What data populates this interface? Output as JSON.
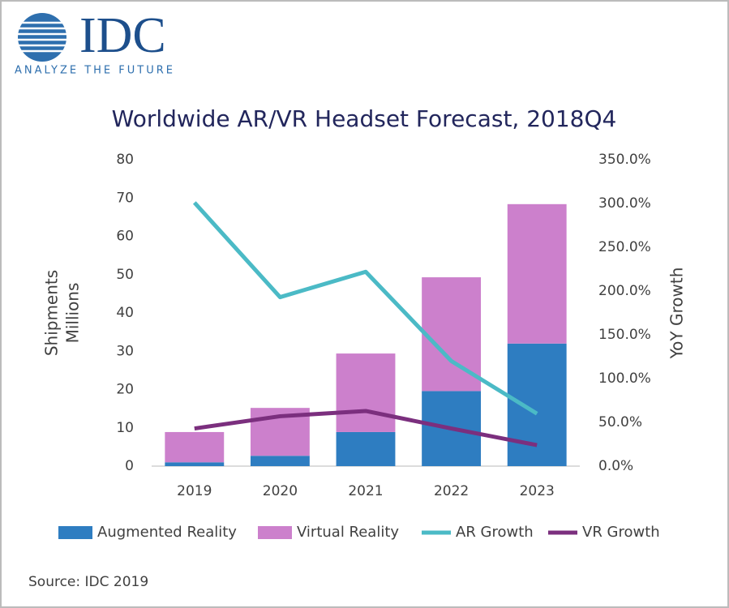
{
  "logo": {
    "name": "IDC",
    "tagline": "ANALYZE THE FUTURE"
  },
  "source": "Source: IDC 2019",
  "chart_data": {
    "type": "bar",
    "title": "Worldwide AR/VR Headset Forecast, 2018Q4",
    "ylabel": [
      "Shipments",
      "Millions"
    ],
    "y2label": "YoY Growth",
    "categories": [
      "2019",
      "2020",
      "2021",
      "2022",
      "2023"
    ],
    "stacked": true,
    "legend": "bottom",
    "series": [
      {
        "name": "Augmented Reality",
        "type": "bar",
        "color": "#2e7dc1",
        "values": [
          1.0,
          2.7,
          8.9,
          19.6,
          32.0
        ]
      },
      {
        "name": "Virtual Reality",
        "type": "bar",
        "color": "#cc80cc",
        "values": [
          7.9,
          12.5,
          20.5,
          29.7,
          36.4
        ]
      },
      {
        "name": "AR Growth",
        "type": "line",
        "axis": "y2",
        "color": "#4bbac6",
        "values": [
          301,
          193,
          222,
          120,
          60
        ]
      },
      {
        "name": "VR Growth",
        "type": "line",
        "axis": "y2",
        "color": "#7b2f7e",
        "values": [
          43,
          57,
          63,
          43,
          24
        ]
      }
    ],
    "ylim": [
      0,
      80
    ],
    "yticks": [
      0,
      10,
      20,
      30,
      40,
      50,
      60,
      70,
      80
    ],
    "y2lim": [
      0,
      350
    ],
    "y2ticks": [
      {
        "value": 0,
        "label": "0.0%"
      },
      {
        "value": 50,
        "label": "50.0%"
      },
      {
        "value": 100,
        "label": "100.0%"
      },
      {
        "value": 150,
        "label": "150.0%"
      },
      {
        "value": 200,
        "label": "200.0%"
      },
      {
        "value": 250,
        "label": "250.0%"
      },
      {
        "value": 300,
        "label": "300.0%"
      },
      {
        "value": 350,
        "label": "350.0%"
      }
    ]
  }
}
